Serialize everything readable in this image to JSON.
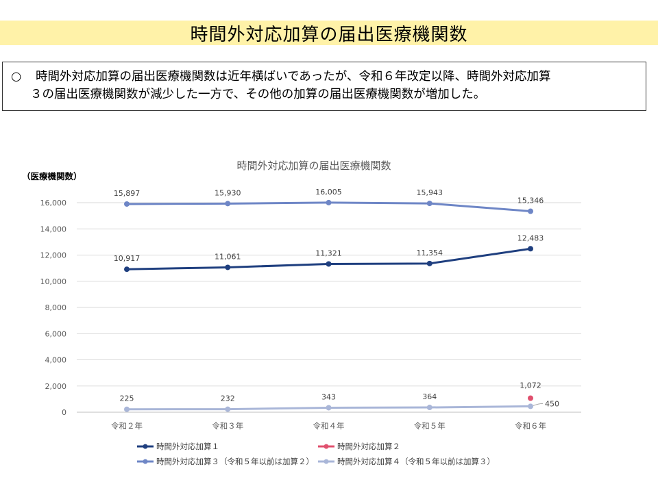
{
  "page_title": "時間外対応加算の届出医療機関数",
  "summary": {
    "bullet": "○",
    "line1": "時間外対応加算の届出医療機関数は近年横ばいであったが、令和６年改定以降、時間外対応加算",
    "line2": "３の届出医療機関数が減少した一方で、その他の加算の届出医療機関数が増加した。"
  },
  "chart_data": {
    "type": "line",
    "title": "時間外対応加算の届出医療機関数",
    "ylabel": "（医療機関数）",
    "xlabel": "",
    "categories": [
      "令和２年",
      "令和３年",
      "令和４年",
      "令和５年",
      "令和６年"
    ],
    "ylim": [
      0,
      16000
    ],
    "yticks": [
      0,
      2000,
      4000,
      6000,
      8000,
      10000,
      12000,
      14000,
      16000
    ],
    "ytick_labels": [
      "0",
      "2,000",
      "4,000",
      "6,000",
      "8,000",
      "10,000",
      "12,000",
      "14,000",
      "16,000"
    ],
    "grid": true,
    "legend_position": "bottom",
    "series": [
      {
        "name": "時間外対応加算１",
        "color": "#1f3f7f",
        "values": [
          10917,
          11061,
          11321,
          11354,
          12483
        ],
        "labels": [
          "10,917",
          "11,061",
          "11,321",
          "11,354",
          "12,483"
        ]
      },
      {
        "name": "時間外対応加算２",
        "color": "#e0506e",
        "values": [
          null,
          null,
          null,
          null,
          1072
        ],
        "labels": [
          "",
          "",
          "",
          "",
          "1,072"
        ]
      },
      {
        "name": "時間外対応加算３（令和５年以前は加算２）",
        "color": "#6e86c6",
        "values": [
          15897,
          15930,
          16005,
          15943,
          15346
        ],
        "labels": [
          "15,897",
          "15,930",
          "16,005",
          "15,943",
          "15,346"
        ]
      },
      {
        "name": "時間外対応加算４（令和５年以前は加算３）",
        "color": "#a9b6d8",
        "values": [
          225,
          232,
          343,
          364,
          450
        ],
        "labels": [
          "225",
          "232",
          "343",
          "364",
          "450"
        ]
      }
    ]
  }
}
